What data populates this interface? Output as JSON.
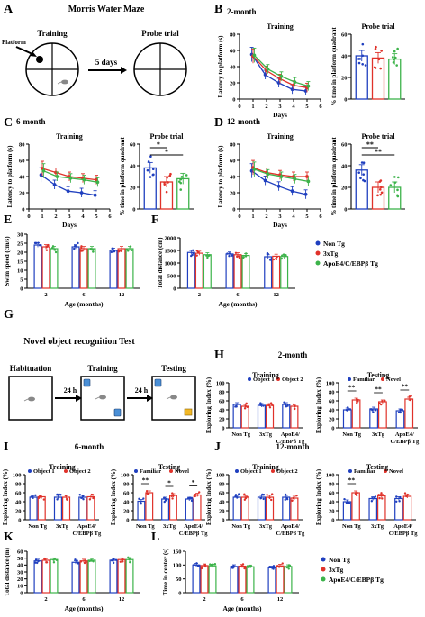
{
  "colors": {
    "nontg": "#1f3fbf",
    "x3tg": "#e0322a",
    "apoe": "#3cb34a",
    "black": "#000000"
  },
  "panel_letters": [
    "A",
    "B",
    "C",
    "D",
    "E",
    "F",
    "G",
    "H",
    "I",
    "J",
    "K",
    "L"
  ],
  "schematic_A": {
    "title": "Morris Water Maze",
    "training": "Training",
    "probe": "Probe trial",
    "platform": "Platform",
    "interval": "5 days"
  },
  "schematic_G": {
    "title": "Novel object recognition Test",
    "habituation": "Habituation",
    "training": "Training",
    "testing": "Testing",
    "interval1": "24 h",
    "interval2": "24 h"
  },
  "legend_groups": [
    "Non Tg",
    "3xTg",
    "ApoE4/C/EBPβ Tg"
  ],
  "legend_objects": [
    "Object 1",
    "Object 2"
  ],
  "legend_novel": [
    "Familiar",
    "Novel"
  ],
  "chart_data": [
    {
      "id": "B-line",
      "type": "line",
      "heading": "2-month",
      "title": "Training",
      "xlabel": "Days",
      "ylabel": "Latency to platform (s)",
      "xlim": [
        0,
        6
      ],
      "ylim": [
        0,
        80
      ],
      "xticks": [
        0,
        1,
        2,
        3,
        4,
        5,
        6
      ],
      "yticks": [
        0,
        20,
        40,
        60,
        80
      ],
      "x": [
        1,
        2,
        3,
        4,
        5
      ],
      "series": [
        {
          "name": "Non Tg",
          "values": [
            55,
            30,
            20,
            12,
            10
          ]
        },
        {
          "name": "3xTg",
          "values": [
            53,
            35,
            25,
            17,
            14
          ]
        },
        {
          "name": "ApoE4/C/EBPβ Tg",
          "values": [
            54,
            37,
            28,
            21,
            16
          ]
        }
      ]
    },
    {
      "id": "B-bar",
      "type": "bar",
      "title": "Probe trial",
      "ylabel": "% time in platform quadrant",
      "ylim": [
        0,
        60
      ],
      "yticks": [
        0,
        20,
        40,
        60
      ],
      "values": [
        40,
        38,
        37
      ]
    },
    {
      "id": "C-line",
      "type": "line",
      "heading": "6-month",
      "title": "Training",
      "xlabel": "Days",
      "ylabel": "Latency to platform (s)",
      "xlim": [
        0,
        6
      ],
      "ylim": [
        0,
        80
      ],
      "xticks": [
        0,
        1,
        2,
        3,
        4,
        5,
        6
      ],
      "yticks": [
        0,
        20,
        40,
        60,
        80
      ],
      "x": [
        1,
        2,
        3,
        4,
        5
      ],
      "series": [
        {
          "name": "Non Tg",
          "values": [
            42,
            30,
            22,
            20,
            17
          ]
        },
        {
          "name": "3xTg",
          "values": [
            50,
            45,
            40,
            38,
            36
          ]
        },
        {
          "name": "ApoE4/C/EBPβ Tg",
          "values": [
            47,
            40,
            38,
            36,
            33
          ]
        }
      ]
    },
    {
      "id": "C-bar",
      "type": "bar",
      "title": "Probe trial",
      "ylabel": "% time in platform quadrant",
      "ylim": [
        0,
        60
      ],
      "yticks": [
        0,
        20,
        40,
        60
      ],
      "values": [
        38,
        25,
        28
      ],
      "sig": [
        {
          "from": 0,
          "to": 1,
          "label": "*"
        },
        {
          "from": 0,
          "to": 2,
          "label": "*"
        }
      ]
    },
    {
      "id": "D-line",
      "type": "line",
      "heading": "12-month",
      "title": "Training",
      "xlabel": "Days",
      "ylabel": "Latency to platform (s)",
      "xlim": [
        0,
        6
      ],
      "ylim": [
        0,
        80
      ],
      "xticks": [
        0,
        1,
        2,
        3,
        4,
        5,
        6
      ],
      "yticks": [
        0,
        20,
        40,
        60,
        80
      ],
      "x": [
        1,
        2,
        3,
        4,
        5
      ],
      "series": [
        {
          "name": "Non Tg",
          "values": [
            47,
            35,
            28,
            22,
            18
          ]
        },
        {
          "name": "3xTg",
          "values": [
            51,
            45,
            42,
            40,
            40
          ]
        },
        {
          "name": "ApoE4/C/EBPβ Tg",
          "values": [
            49,
            43,
            40,
            37,
            34
          ]
        }
      ]
    },
    {
      "id": "D-bar",
      "type": "bar",
      "title": "Probe trial",
      "ylabel": "% time in platform quadrant",
      "ylim": [
        0,
        60
      ],
      "yticks": [
        0,
        20,
        40,
        60
      ],
      "values": [
        36,
        20,
        20
      ],
      "sig": [
        {
          "from": 0,
          "to": 1,
          "label": "**"
        },
        {
          "from": 0,
          "to": 2,
          "label": "**"
        }
      ]
    },
    {
      "id": "E",
      "type": "bar",
      "ylabel": "Swim speed (cm/s)",
      "xlabel": "Age (months)",
      "categories": [
        "2",
        "6",
        "12"
      ],
      "ylim": [
        0,
        30
      ],
      "yticks": [
        0,
        5,
        10,
        15,
        20,
        25,
        30
      ],
      "series": [
        {
          "name": "Non Tg",
          "values": [
            24,
            23,
            21
          ]
        },
        {
          "name": "3xTg",
          "values": [
            23,
            22,
            22
          ]
        },
        {
          "name": "ApoE4/C/EBPβ Tg",
          "values": [
            22,
            22,
            22
          ]
        }
      ]
    },
    {
      "id": "F",
      "type": "bar",
      "ylabel": "Total distance (cm)",
      "xlabel": "Age (months)",
      "categories": [
        "2",
        "6",
        "12"
      ],
      "ylim": [
        0,
        2000
      ],
      "yticks": [
        0,
        500,
        1000,
        1500,
        2000
      ],
      "series": [
        {
          "name": "Non Tg",
          "values": [
            1420,
            1360,
            1250
          ]
        },
        {
          "name": "3xTg",
          "values": [
            1390,
            1330,
            1270
          ]
        },
        {
          "name": "ApoE4/C/EBPβ Tg",
          "values": [
            1330,
            1300,
            1260
          ]
        }
      ]
    },
    {
      "id": "H-train",
      "type": "bar",
      "heading": "2-month",
      "title": "Training",
      "ylabel": "Exploring Index (%)",
      "categories": [
        "Non Tg",
        "3xTg",
        "ApoE4/ C/EBPβ Tg"
      ],
      "ylim": [
        0,
        100
      ],
      "yticks": [
        0,
        20,
        40,
        60,
        80,
        100
      ],
      "series": [
        {
          "name": "Object 1",
          "values": [
            52,
            50,
            52
          ]
        },
        {
          "name": "Object 2",
          "values": [
            48,
            50,
            48
          ]
        }
      ]
    },
    {
      "id": "H-test",
      "type": "bar",
      "title": "Testing",
      "ylabel": "Exploring Index (%)",
      "categories": [
        "Non Tg",
        "3xTg",
        "ApoE4/ C/EBPβ Tg"
      ],
      "ylim": [
        0,
        100
      ],
      "yticks": [
        0,
        20,
        40,
        60,
        80,
        100
      ],
      "series": [
        {
          "name": "Familiar",
          "values": [
            40,
            42,
            38
          ]
        },
        {
          "name": "Novel",
          "values": [
            62,
            58,
            64
          ]
        }
      ],
      "sig": [
        "**",
        "**",
        "**"
      ]
    },
    {
      "id": "I-train",
      "type": "bar",
      "heading": "6-month",
      "title": "Training",
      "ylabel": "Exploring Index (%)",
      "categories": [
        "Non Tg",
        "3xTg",
        "ApoE4/ C/EBPβ Tg"
      ],
      "ylim": [
        0,
        100
      ],
      "yticks": [
        0,
        20,
        40,
        60,
        80,
        100
      ],
      "series": [
        {
          "name": "Object 1",
          "values": [
            50,
            50,
            50
          ]
        },
        {
          "name": "Object 2",
          "values": [
            51,
            50,
            51
          ]
        }
      ]
    },
    {
      "id": "I-test",
      "type": "bar",
      "title": "Testing",
      "ylabel": "Exploring Index (%)",
      "categories": [
        "Non Tg",
        "3xTg",
        "ApoE4/ C/EBPβ Tg"
      ],
      "ylim": [
        0,
        100
      ],
      "yticks": [
        0,
        20,
        40,
        60,
        80,
        100
      ],
      "series": [
        {
          "name": "Familiar",
          "values": [
            41,
            46,
            46
          ]
        },
        {
          "name": "Novel",
          "values": [
            60,
            54,
            55
          ]
        }
      ],
      "sig": [
        "**",
        "*",
        "*"
      ]
    },
    {
      "id": "J-train",
      "type": "bar",
      "heading": "12-month",
      "title": "Training",
      "ylabel": "Exploring Index (%)",
      "categories": [
        "Non Tg",
        "3xTg",
        "ApoE4/ C/EBPβ Tg"
      ],
      "ylim": [
        0,
        100
      ],
      "yticks": [
        0,
        20,
        40,
        60,
        80,
        100
      ],
      "series": [
        {
          "name": "Object 1",
          "values": [
            50,
            50,
            50
          ]
        },
        {
          "name": "Object 2",
          "values": [
            50,
            50,
            48
          ]
        }
      ]
    },
    {
      "id": "J-test",
      "type": "bar",
      "title": "Testing",
      "ylabel": "Exploring Index (%)",
      "categories": [
        "Non Tg",
        "3xTg",
        "ApoE4/ C/EBPβ Tg"
      ],
      "ylim": [
        0,
        100
      ],
      "yticks": [
        0,
        20,
        40,
        60,
        80,
        100
      ],
      "series": [
        {
          "name": "Familiar",
          "values": [
            40,
            47,
            47
          ]
        },
        {
          "name": "Novel",
          "values": [
            60,
            53,
            52
          ]
        }
      ],
      "sig": [
        "**",
        "",
        ""
      ]
    },
    {
      "id": "K",
      "type": "bar",
      "ylabel": "Total distance (m)",
      "xlabel": "Age (months)",
      "categories": [
        "2",
        "6",
        "12"
      ],
      "ylim": [
        0,
        60
      ],
      "yticks": [
        0,
        10,
        20,
        30,
        40,
        50,
        60
      ],
      "series": [
        {
          "name": "Non Tg",
          "values": [
            46,
            44,
            47
          ]
        },
        {
          "name": "3xTg",
          "values": [
            47,
            46,
            48
          ]
        },
        {
          "name": "ApoE4/C/EBPβ Tg",
          "values": [
            48,
            47,
            48
          ]
        }
      ]
    },
    {
      "id": "L",
      "type": "bar",
      "ylabel": "Time in center (s)",
      "xlabel": "Age (months)",
      "categories": [
        "2",
        "6",
        "12"
      ],
      "ylim": [
        0,
        150
      ],
      "yticks": [
        0,
        50,
        100,
        150
      ],
      "series": [
        {
          "name": "Non Tg",
          "values": [
            100,
            95,
            90
          ]
        },
        {
          "name": "3xTg",
          "values": [
            98,
            96,
            97
          ]
        },
        {
          "name": "ApoE4/C/EBPβ Tg",
          "values": [
            97,
            94,
            95
          ]
        }
      ]
    }
  ]
}
